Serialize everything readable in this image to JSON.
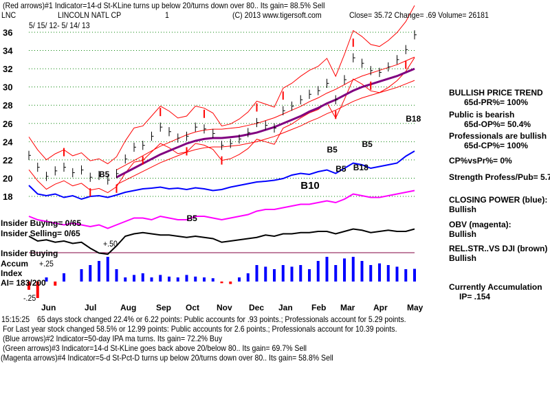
{
  "header": {
    "line1": "(Red arrows)#1 Indicator=14-d St-KLine turns up below 20/turns down over 80.. Its gain= 88.5% Sell",
    "ticker": "LNC",
    "company": "LINCOLN NATL CP",
    "num": "1",
    "copyright": "(C) 2013 www.tigersoft.com",
    "quote": "Close=  35.72  Change= .69 Volume= 26181",
    "daterange": "5/ 15/ 12- 5/ 14/ 13"
  },
  "right_panel": {
    "trend": "BULLISH PRICE TREND",
    "pr": "65d-PR%= 100%",
    "public": "Public is bearish",
    "op": "65d-OP%= 50.4%",
    "pros": "Professionals are bullish",
    "cp": "65d-CP%= 100%",
    "cpvspr": "CP%vsPr%=  0%",
    "strength": "Strength Profess/Pub= 5.7",
    "closing_power": "CLOSING POWER (blue):",
    "cp_state": "Bullish",
    "obv": "OBV (magenta):",
    "obv_state": "Bullish",
    "relstr": "REL.STR..VS DJI (brown)",
    "rs_state": "Bullish",
    "accum": "Currently Accumulation",
    "ip": "IP=  .154"
  },
  "left_panel": {
    "insider_buying": "Insider Buying= 0/65",
    "insider_selling": "Insider Selling= 0/65",
    "insider_buying2": "Insider Buying",
    "accum": "Accum",
    "index": "Index",
    "ai": "AI= 183/200",
    "p50": "+.50",
    "p25": "+.25",
    "m25": "-.25"
  },
  "footer": {
    "l1": "65 days stock changed  22.4% or  6.22 points:  Public accounts for  .93 points.;  Professionals account for  5.29 points.",
    "l1prefix": "15:15:25",
    "l2": "For Last year stock changed  58.5% or  12.99 points:  Public accounts for  2.6 points.;  Professionals account for  10.39 points.",
    "l3": "(Blue arrows)#2 Indicator=50-day IPA ma turns. Its gain= 72.2% Buy",
    "l4": "(Green arrows)#3 Indicator=14-d St-KLine goes back above 20/below 80.. Its gain= 69.7% Sell",
    "l5": "(Magenta arrows)#4 Indicator=5-d St-Pct-D turns up below 20/turns down over 80.. Its gain= 58.8% Sell"
  },
  "annotations": [
    "B5",
    "B5",
    "B5",
    "B5",
    "B5",
    "B18",
    "B10",
    "B18"
  ],
  "colors": {
    "price": "#000000",
    "ma": "#800080",
    "band": "#ff0000",
    "cp": "#0000ff",
    "obv": "#ff00ff",
    "rs": "#000000",
    "grid": "#008000"
  },
  "chart_data": {
    "type": "line",
    "title": "LINCOLN NATL CP (LNC) 5/15/12 - 5/14/13",
    "months": [
      "Jun",
      "Jul",
      "Aug",
      "Sep",
      "Oct",
      "Nov",
      "Dec",
      "Jan",
      "Feb",
      "Mar",
      "Apr",
      "May"
    ],
    "yticks": [
      18,
      20,
      22,
      24,
      26,
      28,
      30,
      32,
      34,
      36
    ],
    "ylim": [
      18,
      36
    ],
    "close": [
      22.5,
      21.2,
      20.2,
      20.8,
      21.2,
      20.6,
      20.9,
      20.1,
      20.3,
      19.8,
      20.5,
      22.1,
      23.4,
      23.6,
      24.6,
      25.6,
      25.1,
      24.4,
      24.6,
      25.6,
      25.4,
      24.9,
      23.6,
      23.8,
      24.3,
      25.0,
      26.1,
      25.8,
      25.5,
      27.4,
      27.9,
      28.6,
      29.2,
      29.6,
      30.4,
      28.6,
      30.8,
      33.2,
      32.6,
      31.8,
      31.6,
      32.2,
      33.0,
      34.1,
      35.72
    ],
    "ma50": [
      null,
      null,
      null,
      null,
      null,
      null,
      null,
      null,
      null,
      null,
      20.1,
      20.6,
      21.1,
      21.6,
      22.1,
      22.6,
      23.0,
      23.4,
      23.8,
      24.1,
      24.3,
      24.4,
      24.4,
      24.5,
      24.6,
      24.8,
      25.0,
      25.3,
      25.6,
      26.0,
      26.4,
      26.8,
      27.3,
      27.7,
      28.2,
      28.6,
      29.1,
      29.6,
      30.0,
      30.3,
      30.6,
      30.9,
      31.2,
      31.6,
      32.0
    ],
    "closing_power": [
      0.7,
      0.45,
      0.4,
      0.45,
      0.35,
      0.4,
      0.3,
      0.38,
      0.4,
      0.35,
      0.42,
      0.5,
      0.55,
      0.6,
      0.62,
      0.65,
      0.6,
      0.62,
      0.58,
      0.63,
      0.6,
      0.55,
      0.58,
      0.65,
      0.7,
      0.75,
      0.8,
      0.82,
      0.85,
      0.9,
      1.0,
      1.05,
      1.02,
      1.1,
      1.15,
      1.05,
      1.2,
      1.35,
      1.3,
      1.2,
      1.25,
      1.3,
      1.35,
      1.55,
      1.7
    ],
    "obv": [
      0.3,
      0.2,
      0.15,
      0.1,
      0.05,
      0.1,
      0.05,
      0.0,
      0.05,
      -0.05,
      0.05,
      0.15,
      0.25,
      0.25,
      0.2,
      0.3,
      0.25,
      0.2,
      0.2,
      0.3,
      0.3,
      0.25,
      0.2,
      0.25,
      0.3,
      0.35,
      0.45,
      0.5,
      0.5,
      0.55,
      0.6,
      0.65,
      0.65,
      0.7,
      0.75,
      0.7,
      0.8,
      0.95,
      0.9,
      0.85,
      0.85,
      0.9,
      0.95,
      1.0,
      1.05
    ],
    "rel_strength": [
      0.8,
      0.6,
      0.65,
      0.55,
      0.6,
      0.5,
      0.55,
      0.3,
      0.1,
      0.05,
      0.4,
      0.8,
      0.9,
      0.95,
      0.9,
      0.85,
      0.85,
      0.8,
      0.75,
      0.8,
      0.75,
      0.7,
      0.55,
      0.6,
      0.65,
      0.7,
      0.75,
      0.85,
      0.8,
      0.9,
      0.9,
      0.95,
      0.95,
      1.0,
      1.0,
      0.9,
      1.0,
      1.1,
      1.05,
      0.95,
      1.0,
      1.05,
      1.0,
      1.0,
      1.1
    ],
    "accum_index": [
      -0.1,
      -0.2,
      0.05,
      -0.05,
      0.1,
      0.0,
      0.15,
      0.2,
      0.25,
      0.3,
      0.15,
      0.05,
      0.08,
      0.1,
      0.05,
      0.08,
      0.06,
      0.05,
      0.08,
      0.06,
      0.05,
      0.04,
      -0.02,
      -0.03,
      0.05,
      0.1,
      0.2,
      0.18,
      0.15,
      0.2,
      0.18,
      0.2,
      0.15,
      0.25,
      0.3,
      0.2,
      0.28,
      0.3,
      0.25,
      0.2,
      0.22,
      0.2,
      0.18,
      0.15,
      0.154
    ],
    "accum_ticks": [
      "+.50",
      "+.25",
      "-.25"
    ]
  }
}
